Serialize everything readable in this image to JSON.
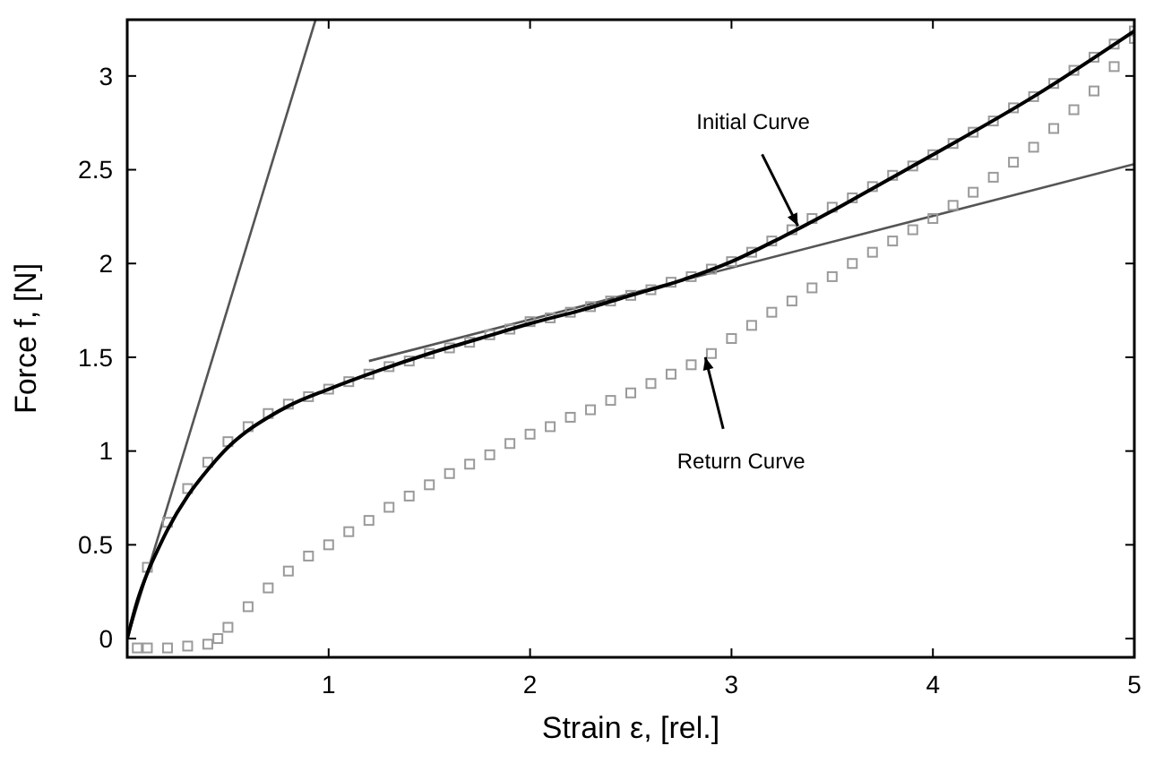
{
  "chart_data": {
    "type": "line",
    "xlabel": "Strain ε, [rel.]",
    "ylabel": "Force f, [N]",
    "xlim": [
      0,
      5
    ],
    "ylim": [
      -0.1,
      3.3
    ],
    "xticks": [
      1,
      2,
      3,
      4,
      5
    ],
    "yticks": [
      0,
      0.5,
      1,
      1.5,
      2,
      2.5,
      3
    ],
    "grid": false,
    "series": [
      {
        "color": "#555555",
        "marker": "none",
        "x": [
          0,
          0.935
        ],
        "values": [
          0,
          3.3
        ]
      },
      {
        "color": "#555555",
        "marker": "none",
        "x": [
          1.2,
          5
        ],
        "values": [
          1.48,
          2.53
        ]
      },
      {
        "type": "scatter",
        "color": "#9a9a9a",
        "marker": "square",
        "x": [
          0.1,
          0.2,
          0.3,
          0.4,
          0.5,
          0.6,
          0.7,
          0.8,
          0.9,
          1,
          1.1,
          1.2,
          1.3,
          1.4,
          1.5,
          1.6,
          1.7,
          1.8,
          1.9,
          2,
          2.1,
          2.2,
          2.3,
          2.4,
          2.5,
          2.6,
          2.7,
          2.8,
          2.9,
          3,
          3.1,
          3.2,
          3.3,
          3.4,
          3.5,
          3.6,
          3.7,
          3.8,
          3.9,
          4,
          4.1,
          4.2,
          4.3,
          4.4,
          4.5,
          4.6,
          4.7,
          4.8,
          4.9,
          5
        ],
        "values": [
          0.38,
          0.62,
          0.8,
          0.94,
          1.05,
          1.13,
          1.2,
          1.25,
          1.29,
          1.33,
          1.37,
          1.41,
          1.45,
          1.48,
          1.52,
          1.55,
          1.58,
          1.62,
          1.65,
          1.69,
          1.71,
          1.74,
          1.77,
          1.8,
          1.83,
          1.86,
          1.9,
          1.93,
          1.97,
          2.01,
          2.06,
          2.12,
          2.18,
          2.24,
          2.3,
          2.35,
          2.41,
          2.47,
          2.52,
          2.58,
          2.64,
          2.7,
          2.76,
          2.83,
          2.89,
          2.96,
          3.03,
          3.1,
          3.17,
          3.24
        ]
      },
      {
        "type": "scatter",
        "color": "#9a9a9a",
        "marker": "square",
        "x": [
          0.05,
          0.1,
          0.2,
          0.3,
          0.4,
          0.45,
          0.5,
          0.6,
          0.7,
          0.8,
          0.9,
          1,
          1.1,
          1.2,
          1.3,
          1.4,
          1.5,
          1.6,
          1.7,
          1.8,
          1.9,
          2,
          2.1,
          2.2,
          2.3,
          2.4,
          2.5,
          2.6,
          2.7,
          2.8,
          2.9,
          3,
          3.1,
          3.2,
          3.3,
          3.4,
          3.5,
          3.6,
          3.7,
          3.8,
          3.9,
          4,
          4.1,
          4.2,
          4.3,
          4.4,
          4.5,
          4.6,
          4.7,
          4.8,
          4.9,
          5
        ],
        "values": [
          -0.05,
          -0.05,
          -0.05,
          -0.04,
          -0.03,
          0,
          0.06,
          0.17,
          0.27,
          0.36,
          0.44,
          0.5,
          0.57,
          0.63,
          0.7,
          0.76,
          0.82,
          0.88,
          0.93,
          0.98,
          1.04,
          1.09,
          1.13,
          1.18,
          1.22,
          1.27,
          1.31,
          1.36,
          1.41,
          1.46,
          1.52,
          1.6,
          1.67,
          1.74,
          1.8,
          1.87,
          1.93,
          2,
          2.06,
          2.12,
          2.18,
          2.24,
          2.31,
          2.38,
          2.46,
          2.54,
          2.62,
          2.72,
          2.82,
          2.92,
          3.05,
          3.2
        ]
      },
      {
        "color": "#000000",
        "marker": "none",
        "x": [
          0,
          0.05,
          0.1,
          0.15,
          0.2,
          0.3,
          0.4,
          0.5,
          0.6,
          0.7,
          0.8,
          1,
          1.25,
          1.5,
          1.75,
          2,
          2.25,
          2.5,
          2.75,
          3,
          3.25,
          3.5,
          3.75,
          4,
          4.5,
          5
        ],
        "values": [
          0,
          0.2,
          0.35,
          0.47,
          0.58,
          0.76,
          0.9,
          1.02,
          1.11,
          1.18,
          1.24,
          1.33,
          1.43,
          1.52,
          1.6,
          1.68,
          1.75,
          1.83,
          1.91,
          2.01,
          2.14,
          2.28,
          2.43,
          2.58,
          2.89,
          3.24
        ]
      }
    ],
    "annotations": [
      {
        "text": "Initial Curve",
        "x": 3.33,
        "y": 2.2
      },
      {
        "text": "Return Curve",
        "x": 2.87,
        "y": 1.5
      }
    ]
  }
}
